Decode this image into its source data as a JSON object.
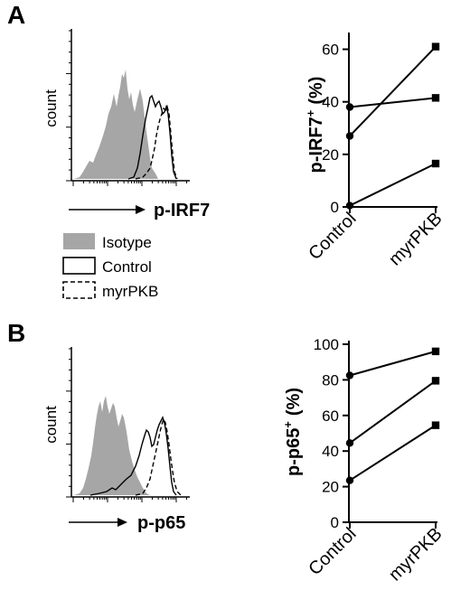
{
  "panels": [
    {
      "letter": "A",
      "histogram": {
        "ylabel": "count",
        "xlabel": "p-IRF7"
      },
      "legend": [
        {
          "label": "Isotype",
          "style": "filled-gray"
        },
        {
          "label": "Control",
          "style": "solid-line"
        },
        {
          "label": "myrPKB",
          "style": "dashed-line"
        }
      ]
    },
    {
      "letter": "B",
      "histogram": {
        "ylabel": "count",
        "xlabel": "p-p65"
      }
    }
  ],
  "chart_data": [
    {
      "type": "line",
      "ylabel_main": "p-IRF7",
      "ylabel_sup": "+",
      "ylabel_unit": "(%)",
      "categories": [
        "Control",
        "myrPKB"
      ],
      "ylim": [
        0,
        65
      ],
      "yticks": [
        0,
        20,
        40,
        60
      ],
      "series": [
        {
          "values": [
            38,
            41.5
          ]
        },
        {
          "values": [
            27,
            61
          ]
        },
        {
          "values": [
            0.5,
            16.5
          ]
        }
      ],
      "markers": {
        "Control": "circle",
        "myrPKB": "square"
      }
    },
    {
      "type": "line",
      "ylabel_main": "p-p65",
      "ylabel_sup": "+",
      "ylabel_unit": "(%)",
      "categories": [
        "Control",
        "myrPKB"
      ],
      "ylim": [
        0,
        100
      ],
      "yticks": [
        0,
        20,
        40,
        60,
        80,
        100
      ],
      "series": [
        {
          "values": [
            82.5,
            96
          ]
        },
        {
          "values": [
            44.5,
            79.5
          ]
        },
        {
          "values": [
            23.5,
            54.5
          ]
        }
      ],
      "markers": {
        "Control": "circle",
        "myrPKB": "square"
      }
    }
  ],
  "colors": {
    "isotype_fill": "#a6a6a6",
    "line": "#000000"
  }
}
